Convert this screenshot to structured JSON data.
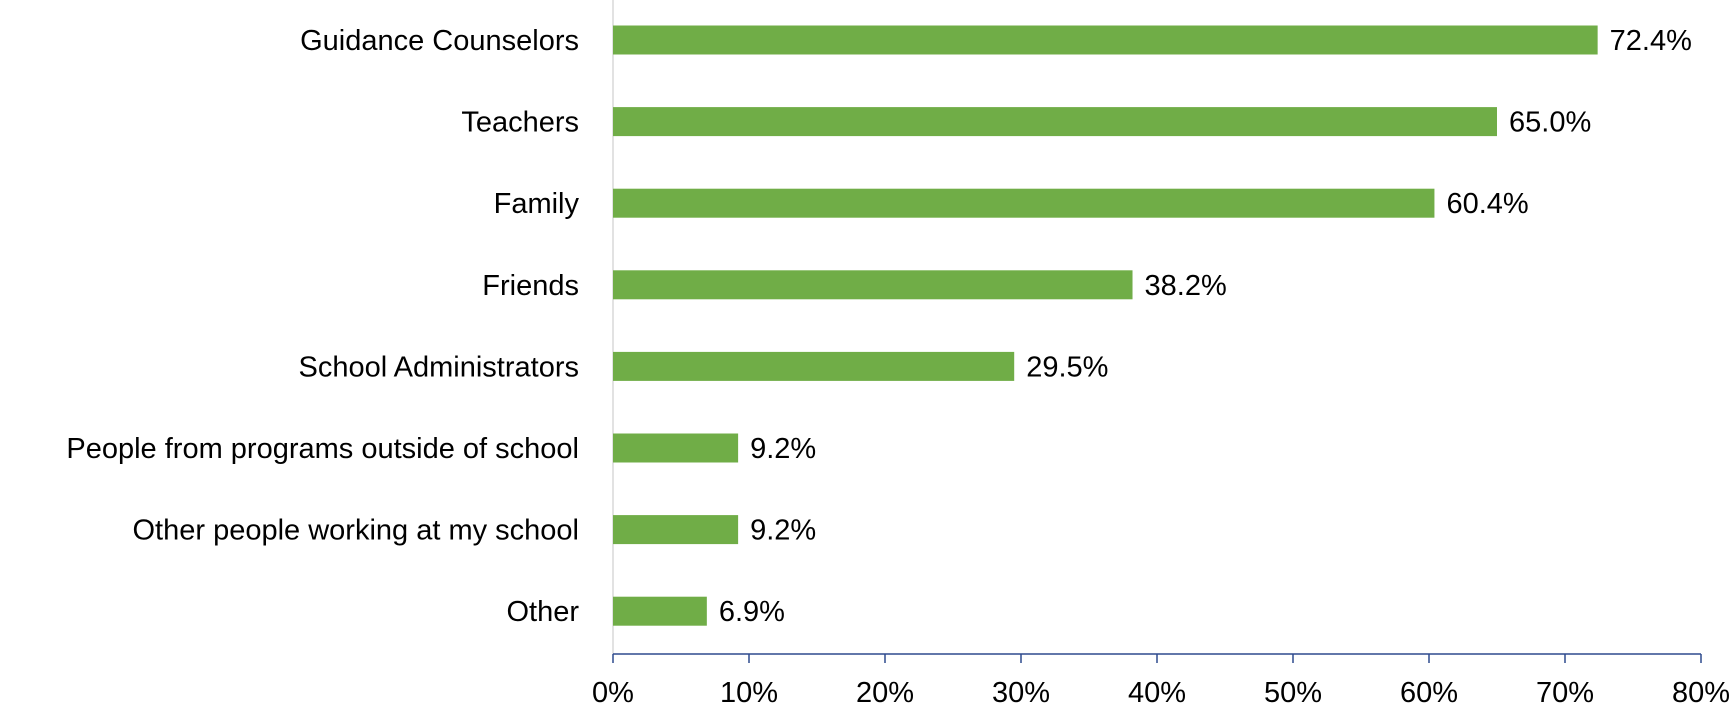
{
  "chart_data": {
    "type": "bar",
    "orientation": "horizontal",
    "title": "",
    "xlabel": "",
    "ylabel": "",
    "categories": [
      "Guidance Counselors",
      "Teachers",
      "Family",
      "Friends",
      "School Administrators",
      "People from programs outside of school",
      "Other people working at my school",
      "Other"
    ],
    "values": [
      72.4,
      65.0,
      60.4,
      38.2,
      29.5,
      9.2,
      9.2,
      6.9
    ],
    "value_labels": [
      "72.4%",
      "65.0%",
      "60.4%",
      "38.2%",
      "29.5%",
      "9.2%",
      "9.2%",
      "6.9%"
    ],
    "xlim": [
      0,
      80
    ],
    "x_ticks": [
      0,
      10,
      20,
      30,
      40,
      50,
      60,
      70,
      80
    ],
    "x_tick_labels": [
      "0%",
      "10%",
      "20%",
      "30%",
      "40%",
      "50%",
      "60%",
      "70%",
      "80%"
    ],
    "grid": false,
    "legend": "none",
    "bar_color": "#70ad47",
    "axis_color": "#2e4a8e",
    "category_axis_color": "#d9d9d9"
  }
}
